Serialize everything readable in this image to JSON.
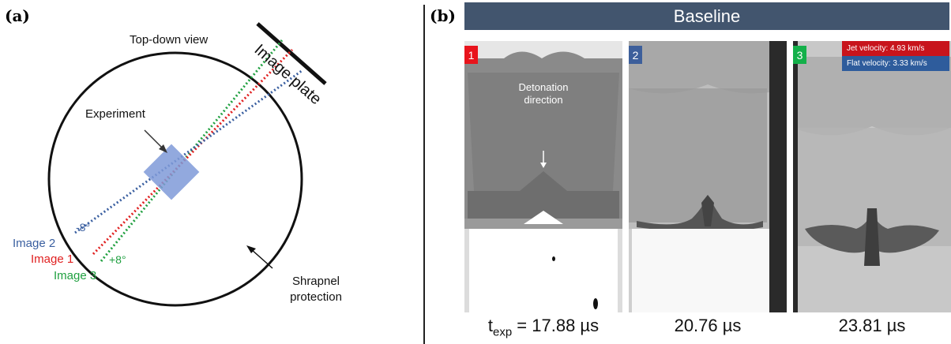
{
  "panel_a": {
    "label": "(a)",
    "top_down_view": "Top-down view",
    "image_plate": "Image plate",
    "experiment": "Experiment",
    "angle_minus": "-8°",
    "angle_plus": "+8°",
    "image2": "Image 2",
    "image1": "Image 1",
    "image3": "Image 3",
    "shrapnel_line1": "Shrapnel",
    "shrapnel_line2": "protection"
  },
  "panel_b": {
    "label": "(b)",
    "title": "Baseline",
    "frames": [
      {
        "number": "1",
        "time_prefix": "t",
        "time_sub": "exp",
        "time_value": " = 17.88 µs"
      },
      {
        "number": "2",
        "time_value": "20.76 µs"
      },
      {
        "number": "3",
        "time_value": "23.81 µs"
      }
    ],
    "detonation_line1": "Detonation",
    "detonation_line2": "direction",
    "jet_velocity": "Jet velocity:  4.93 km/s",
    "flat_velocity": "Flat velocity: 3.33  km/s"
  },
  "colors": {
    "image1": "#e02020",
    "image2": "#3a5fa0",
    "image3": "#20a040",
    "experiment": "#7f9ad8",
    "frame1_badge": "#e8141c",
    "frame2_badge": "#3d5f9b",
    "frame3_badge": "#14b04a",
    "title_bar": "#42556e",
    "jet_box": "#c8141c",
    "flat_box": "#2e5c9c"
  }
}
